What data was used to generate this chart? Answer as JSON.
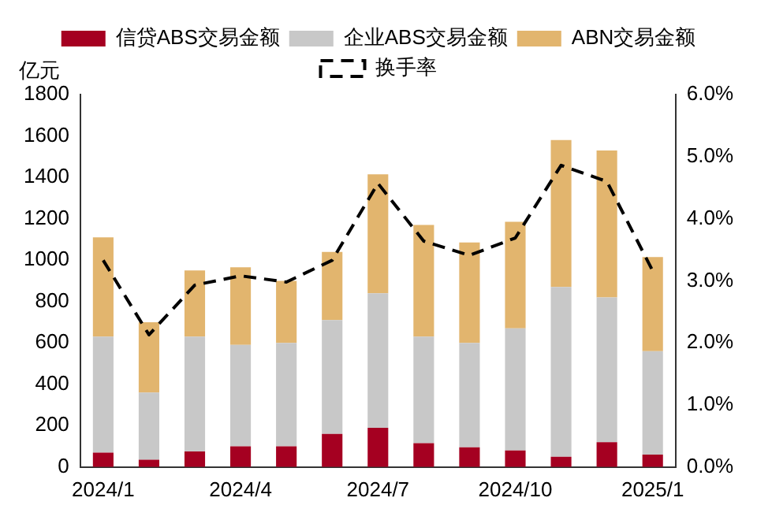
{
  "chart_data": {
    "type": "bar",
    "stacked": true,
    "ylabel": "亿元",
    "categories": [
      "2024/1",
      null,
      null,
      "2024/4",
      null,
      null,
      "2024/7",
      null,
      null,
      "2024/10",
      null,
      null,
      "2025/1"
    ],
    "series": [
      {
        "name": "信贷ABS交易金额",
        "color": "#a50021",
        "values": [
          70,
          35,
          75,
          100,
          100,
          160,
          190,
          115,
          95,
          80,
          50,
          120,
          60
        ]
      },
      {
        "name": "企业ABS交易金额",
        "color": "#c8c8c8",
        "values": [
          560,
          325,
          555,
          490,
          500,
          550,
          650,
          515,
          505,
          590,
          820,
          700,
          500
        ]
      },
      {
        "name": "ABN交易金额",
        "color": "#e2b56e",
        "values": [
          480,
          340,
          320,
          375,
          300,
          330,
          575,
          540,
          485,
          515,
          710,
          710,
          455
        ]
      },
      {
        "name": "换手率",
        "type": "line",
        "axis": "y2",
        "color": "#000000",
        "line_style": "dashed",
        "marker": "none",
        "values": [
          3.33,
          2.13,
          2.93,
          3.08,
          2.98,
          3.33,
          4.57,
          3.64,
          3.41,
          3.69,
          4.86,
          4.6,
          3.16
        ]
      }
    ],
    "ylim": [
      0,
      1800
    ],
    "yticks": [
      0,
      200,
      400,
      600,
      800,
      1000,
      1200,
      1400,
      1600,
      1800
    ],
    "y2lim": [
      0,
      6
    ],
    "y2ticks": [
      {
        "value": 0,
        "label": "0.0%"
      },
      {
        "value": 1,
        "label": "1.0%"
      },
      {
        "value": 2,
        "label": "2.0%"
      },
      {
        "value": 3,
        "label": "3.0%"
      },
      {
        "value": 4,
        "label": "4.0%"
      },
      {
        "value": 5,
        "label": "5.0%"
      },
      {
        "value": 6,
        "label": "6.0%"
      }
    ],
    "legend": "top",
    "grid": false
  }
}
